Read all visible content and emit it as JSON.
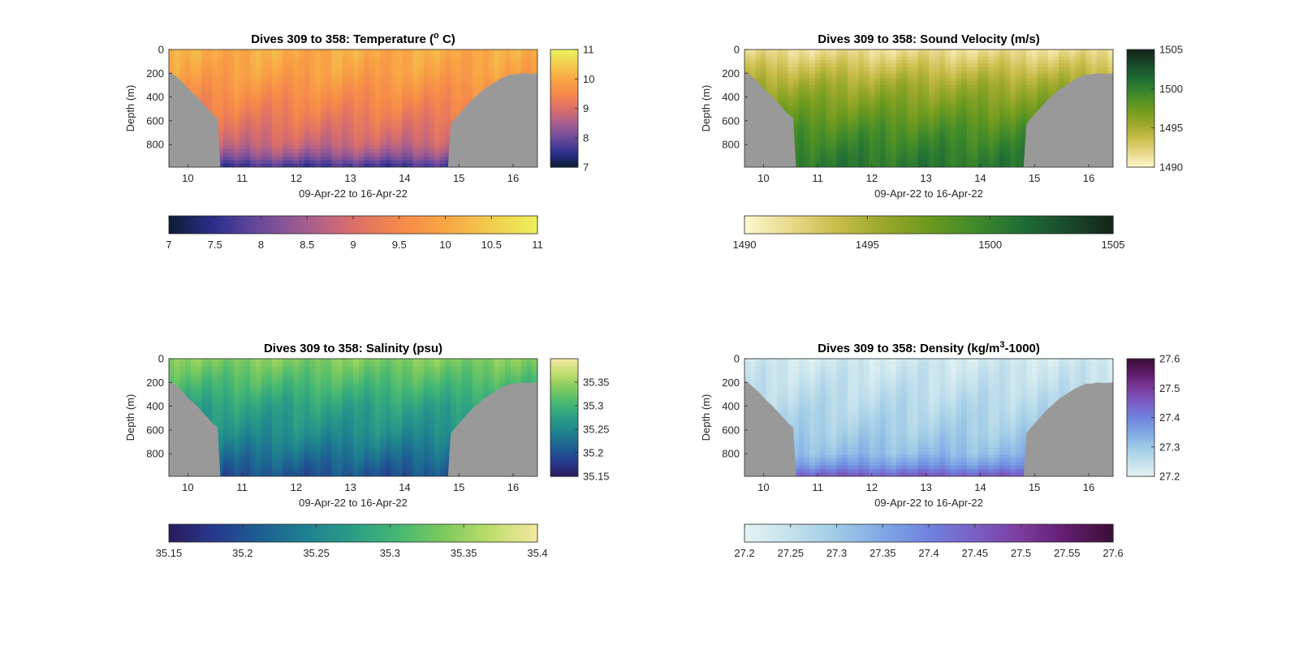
{
  "figure": {
    "background": "#ffffff",
    "mask_color": "#999999",
    "axis_color": "#262626"
  },
  "chart_data": [
    {
      "type": "heatmap",
      "title": "Dives 309 to 358: Temperature (° C)",
      "title_parts": [
        "Dives 309 to 358: Temperature (",
        "o",
        " C)"
      ],
      "title_part_style": [
        "normal",
        "sup",
        "normal"
      ],
      "xlabel": "09-Apr-22 to 16-Apr-22",
      "ylabel": "Depth (m)",
      "xlim": [
        9.65,
        16.45
      ],
      "ylim": [
        0,
        990
      ],
      "y_reversed": true,
      "x_ticks": [
        10,
        11,
        12,
        13,
        14,
        15,
        16
      ],
      "x_tick_labels": [
        "10",
        "11",
        "12",
        "13",
        "14",
        "15",
        "16"
      ],
      "y_ticks": [
        0,
        200,
        400,
        600,
        800
      ],
      "y_tick_labels": [
        "0",
        "200",
        "400",
        "600",
        "800"
      ],
      "colorbar_right": {
        "range": [
          7,
          11
        ],
        "ticks": [
          7,
          8,
          9,
          10,
          11
        ],
        "tick_labels": [
          "7",
          "8",
          "9",
          "10",
          "11"
        ]
      },
      "colorbar_bottom": {
        "range": [
          7,
          11
        ],
        "ticks": [
          7,
          7.5,
          8,
          8.5,
          9,
          9.5,
          10,
          10.5,
          11
        ],
        "tick_labels": [
          "7",
          "7.5",
          "8",
          "8.5",
          "9",
          "9.5",
          "10",
          "10.5",
          "11"
        ]
      },
      "colormap": [
        "#0b1c33",
        "#2e2f8e",
        "#6b4a9c",
        "#a65e8e",
        "#dc6f6a",
        "#f5894a",
        "#f9a544",
        "#f2cc4e",
        "#ebf15a"
      ],
      "bathymetry_bottom_depth": {
        "x": [
          9.65,
          9.75,
          9.85,
          9.95,
          10.05,
          10.15,
          10.25,
          10.35,
          10.45,
          10.55,
          10.6,
          14.8,
          14.85,
          14.95,
          15.05,
          15.15,
          15.25,
          15.35,
          15.45,
          15.55,
          15.65,
          15.75,
          15.85,
          15.95,
          16.05,
          16.15,
          16.3,
          16.45
        ],
        "depth": [
          185,
          215,
          255,
          300,
          350,
          390,
          440,
          490,
          540,
          580,
          990,
          990,
          630,
          570,
          520,
          470,
          420,
          380,
          340,
          310,
          280,
          250,
          230,
          210,
          210,
          200,
          205,
          200
        ]
      },
      "field": {
        "surface_value": 10.1,
        "bottom_value": 7.6,
        "profile": [
          [
            0,
            10.1
          ],
          [
            200,
            9.9
          ],
          [
            400,
            9.55
          ],
          [
            600,
            9.2
          ],
          [
            800,
            8.8
          ],
          [
            900,
            8.3
          ],
          [
            990,
            7.6
          ]
        ]
      }
    },
    {
      "type": "heatmap",
      "title": "Dives 309 to 358: Sound Velocity (m/s)",
      "title_parts": [
        "Dives 309 to 358: Sound Velocity (m/s)"
      ],
      "title_part_style": [
        "normal"
      ],
      "xlabel": "09-Apr-22 to 16-Apr-22",
      "ylabel": "Depth (m)",
      "xlim": [
        9.65,
        16.45
      ],
      "ylim": [
        0,
        990
      ],
      "y_reversed": true,
      "x_ticks": [
        10,
        11,
        12,
        13,
        14,
        15,
        16
      ],
      "x_tick_labels": [
        "10",
        "11",
        "12",
        "13",
        "14",
        "15",
        "16"
      ],
      "y_ticks": [
        0,
        200,
        400,
        600,
        800
      ],
      "y_tick_labels": [
        "0",
        "200",
        "400",
        "600",
        "800"
      ],
      "colorbar_right": {
        "range": [
          1490,
          1505
        ],
        "ticks": [
          1490,
          1495,
          1500,
          1505
        ],
        "tick_labels": [
          "1490",
          "1495",
          "1500",
          "1505"
        ]
      },
      "colorbar_bottom": {
        "range": [
          1490,
          1505
        ],
        "ticks": [
          1490,
          1495,
          1500,
          1505
        ],
        "tick_labels": [
          "1490",
          "1495",
          "1500",
          "1505"
        ]
      },
      "colormap": [
        "#fdf8cf",
        "#e8d98a",
        "#c9bd4a",
        "#99a82a",
        "#6d9a1e",
        "#3f8a2a",
        "#1f6e34",
        "#1a4a2c",
        "#14241a"
      ],
      "bathymetry_bottom_depth": {
        "x": [
          9.65,
          9.75,
          9.85,
          9.95,
          10.05,
          10.15,
          10.25,
          10.35,
          10.45,
          10.55,
          10.6,
          14.8,
          14.85,
          14.95,
          15.05,
          15.15,
          15.25,
          15.35,
          15.45,
          15.55,
          15.65,
          15.75,
          15.85,
          15.95,
          16.05,
          16.15,
          16.3,
          16.45
        ],
        "depth": [
          185,
          215,
          255,
          300,
          350,
          390,
          440,
          490,
          540,
          580,
          990,
          990,
          630,
          570,
          520,
          470,
          420,
          380,
          340,
          310,
          280,
          250,
          230,
          210,
          210,
          200,
          205,
          200
        ]
      },
      "field": {
        "surface_value": 1491.5,
        "bottom_value": 1500.5,
        "profile": [
          [
            0,
            1491.5
          ],
          [
            150,
            1493.5
          ],
          [
            300,
            1495.3
          ],
          [
            500,
            1497.2
          ],
          [
            700,
            1499
          ],
          [
            900,
            1500.3
          ],
          [
            990,
            1500.5
          ]
        ]
      }
    },
    {
      "type": "heatmap",
      "title": "Dives 309 to 358: Salinity (psu)",
      "title_parts": [
        "Dives 309 to 358: Salinity (psu)"
      ],
      "title_part_style": [
        "normal"
      ],
      "xlabel": "09-Apr-22 to 16-Apr-22",
      "ylabel": "Depth (m)",
      "xlim": [
        9.65,
        16.45
      ],
      "ylim": [
        0,
        990
      ],
      "y_reversed": true,
      "x_ticks": [
        10,
        11,
        12,
        13,
        14,
        15,
        16
      ],
      "x_tick_labels": [
        "10",
        "11",
        "12",
        "13",
        "14",
        "15",
        "16"
      ],
      "y_ticks": [
        0,
        200,
        400,
        600,
        800
      ],
      "y_tick_labels": [
        "0",
        "200",
        "400",
        "600",
        "800"
      ],
      "colorbar_right": {
        "range": [
          35.15,
          35.4
        ],
        "ticks": [
          35.15,
          35.2,
          35.25,
          35.3,
          35.35
        ],
        "tick_labels": [
          "35.15",
          "35.2",
          "35.25",
          "35.3",
          "35.35"
        ]
      },
      "colorbar_bottom": {
        "range": [
          35.15,
          35.4
        ],
        "ticks": [
          35.15,
          35.2,
          35.25,
          35.3,
          35.35,
          35.4
        ],
        "tick_labels": [
          "35.15",
          "35.2",
          "35.25",
          "35.3",
          "35.35",
          "35.4"
        ]
      },
      "colormap": [
        "#2b1a5c",
        "#263a8e",
        "#1d6092",
        "#1f8190",
        "#2a9e86",
        "#46b873",
        "#7ecb5d",
        "#bfdd6c",
        "#f5e8a0"
      ],
      "bathymetry_bottom_depth": {
        "x": [
          9.65,
          9.75,
          9.85,
          9.95,
          10.05,
          10.15,
          10.25,
          10.35,
          10.45,
          10.55,
          10.6,
          14.8,
          14.85,
          14.95,
          15.05,
          15.15,
          15.25,
          15.35,
          15.45,
          15.55,
          15.65,
          15.75,
          15.85,
          15.95,
          16.05,
          16.15,
          16.3,
          16.45
        ],
        "depth": [
          185,
          215,
          255,
          300,
          350,
          390,
          440,
          490,
          540,
          580,
          990,
          990,
          630,
          570,
          520,
          470,
          420,
          380,
          340,
          310,
          280,
          250,
          230,
          210,
          210,
          200,
          205,
          200
        ]
      },
      "field": {
        "surface_value": 35.34,
        "bottom_value": 35.2,
        "profile": [
          [
            0,
            35.34
          ],
          [
            200,
            35.31
          ],
          [
            400,
            35.28
          ],
          [
            600,
            35.26
          ],
          [
            800,
            35.23
          ],
          [
            990,
            35.2
          ]
        ]
      }
    },
    {
      "type": "heatmap",
      "title": "Dives 309 to 358: Density (kg/m³-1000)",
      "title_parts": [
        "Dives 309 to 358: Density (kg/m",
        "3",
        "-1000)"
      ],
      "title_part_style": [
        "normal",
        "sup",
        "normal"
      ],
      "xlabel": "09-Apr-22 to 16-Apr-22",
      "ylabel": "Depth (m)",
      "xlim": [
        9.65,
        16.45
      ],
      "ylim": [
        0,
        990
      ],
      "y_reversed": true,
      "x_ticks": [
        10,
        11,
        12,
        13,
        14,
        15,
        16
      ],
      "x_tick_labels": [
        "10",
        "11",
        "12",
        "13",
        "14",
        "15",
        "16"
      ],
      "y_ticks": [
        0,
        200,
        400,
        600,
        800
      ],
      "y_tick_labels": [
        "0",
        "200",
        "400",
        "600",
        "800"
      ],
      "colorbar_right": {
        "range": [
          27.2,
          27.6
        ],
        "ticks": [
          27.2,
          27.3,
          27.4,
          27.5,
          27.6
        ],
        "tick_labels": [
          "27.2",
          "27.3",
          "27.4",
          "27.5",
          "27.6"
        ]
      },
      "colorbar_bottom": {
        "range": [
          27.2,
          27.6
        ],
        "ticks": [
          27.2,
          27.25,
          27.3,
          27.35,
          27.4,
          27.45,
          27.5,
          27.55,
          27.6
        ],
        "tick_labels": [
          "27.2",
          "27.25",
          "27.3",
          "27.35",
          "27.4",
          "27.45",
          "27.5",
          "27.55",
          "27.6"
        ]
      },
      "colormap": [
        "#e6f3f2",
        "#c4e1ec",
        "#9fcbe6",
        "#80a8e6",
        "#6f83de",
        "#7a5fc6",
        "#7c3c9e",
        "#611c6e",
        "#3a0e37"
      ],
      "bathymetry_bottom_depth": {
        "x": [
          9.65,
          9.75,
          9.85,
          9.95,
          10.05,
          10.15,
          10.25,
          10.35,
          10.45,
          10.55,
          10.6,
          14.8,
          14.85,
          14.95,
          15.05,
          15.15,
          15.25,
          15.35,
          15.45,
          15.55,
          15.65,
          15.75,
          15.85,
          15.95,
          16.05,
          16.15,
          16.3,
          16.45
        ],
        "depth": [
          185,
          215,
          255,
          300,
          350,
          390,
          440,
          490,
          540,
          580,
          990,
          990,
          630,
          570,
          520,
          470,
          420,
          380,
          340,
          310,
          280,
          250,
          230,
          210,
          210,
          200,
          205,
          200
        ]
      },
      "field": {
        "surface_value": 27.23,
        "bottom_value": 27.46,
        "profile": [
          [
            0,
            27.23
          ],
          [
            200,
            27.25
          ],
          [
            400,
            27.27
          ],
          [
            600,
            27.29
          ],
          [
            800,
            27.32
          ],
          [
            900,
            27.37
          ],
          [
            990,
            27.46
          ]
        ]
      }
    }
  ]
}
